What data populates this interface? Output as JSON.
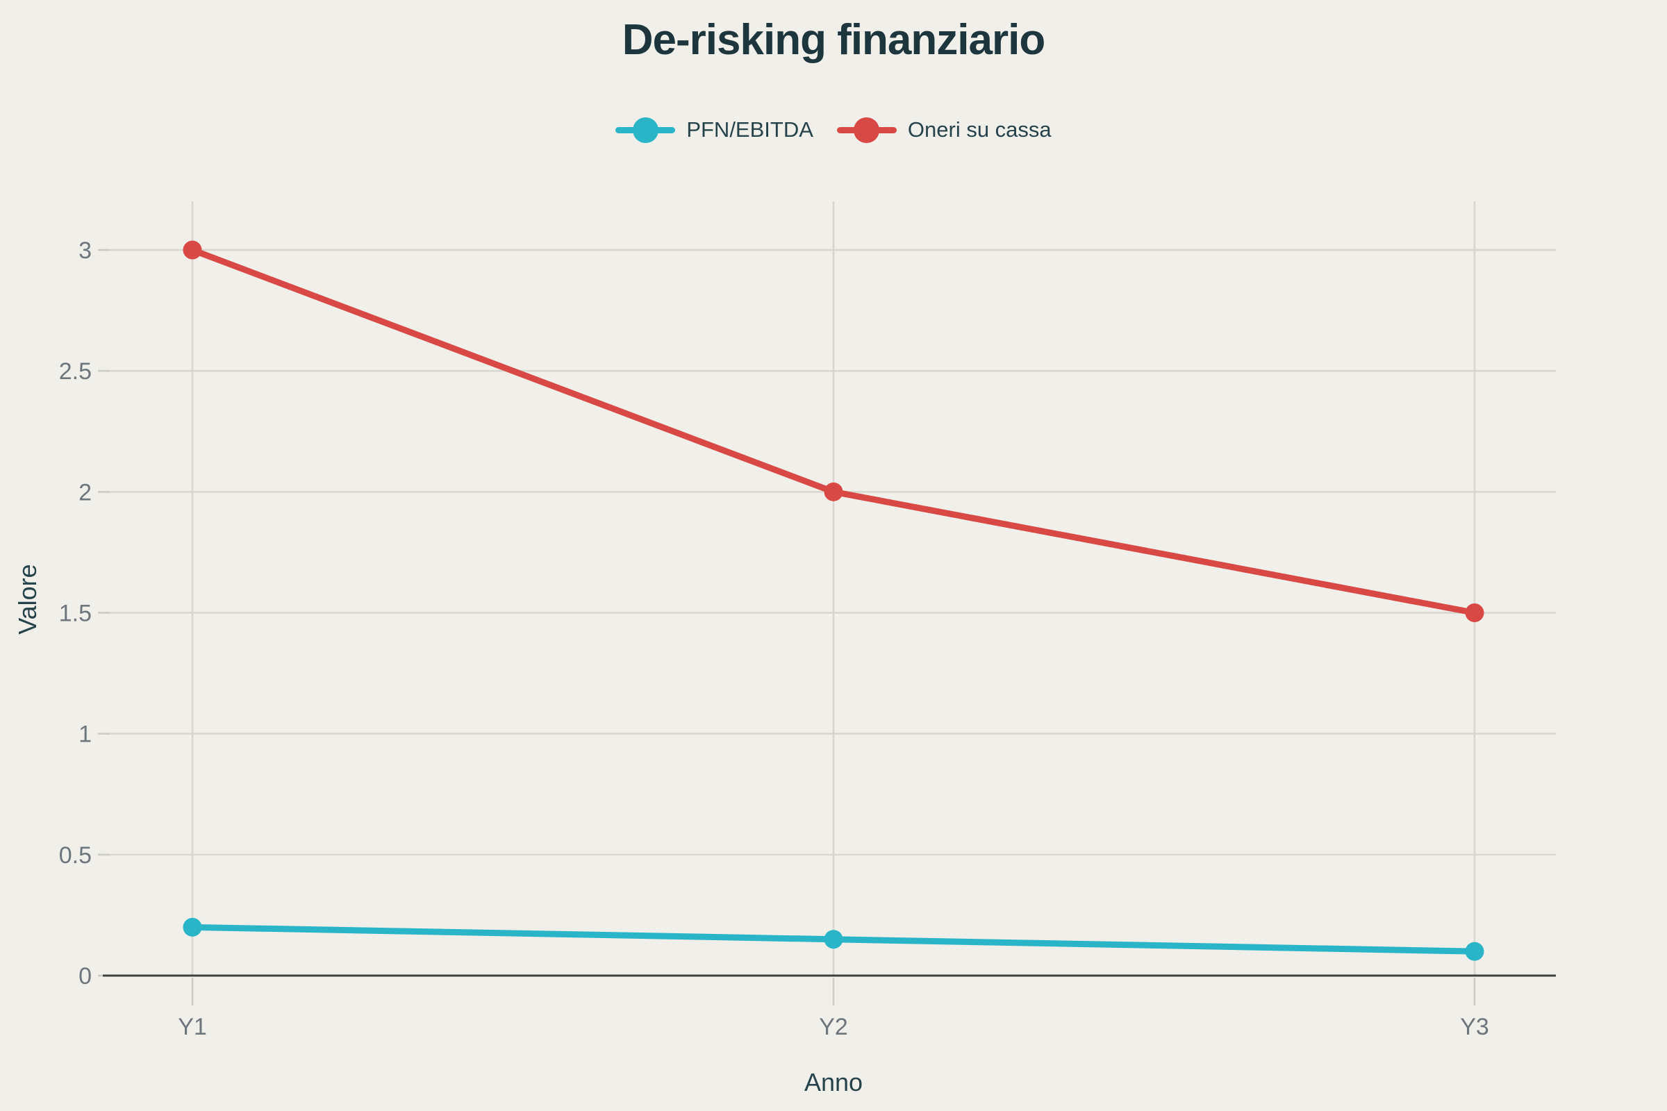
{
  "chart_data": {
    "type": "line",
    "title": "De-risking finanziario",
    "xlabel": "Anno",
    "ylabel": "Valore",
    "categories": [
      "Y1",
      "Y2",
      "Y3"
    ],
    "series": [
      {
        "name": "PFN/EBITDA",
        "color": "#29b4c8",
        "values": [
          0.2,
          0.15,
          0.1
        ]
      },
      {
        "name": "Oneri su cassa",
        "color": "#d84845",
        "values": [
          3,
          2,
          1.5
        ]
      }
    ],
    "yticks": [
      0,
      0.5,
      1,
      1.5,
      2,
      2.5,
      3
    ],
    "ylim": [
      0,
      3.2
    ],
    "grid": true,
    "legend_position": "top"
  },
  "colors": {
    "background": "#f0efe9",
    "title_text": "#1d363d",
    "axis_title_text": "#26434c",
    "tick_label_text": "#6e767d",
    "gridline": "#d8d6cf",
    "tick_mark": "#cccbc4",
    "axis_line": "#404040"
  }
}
